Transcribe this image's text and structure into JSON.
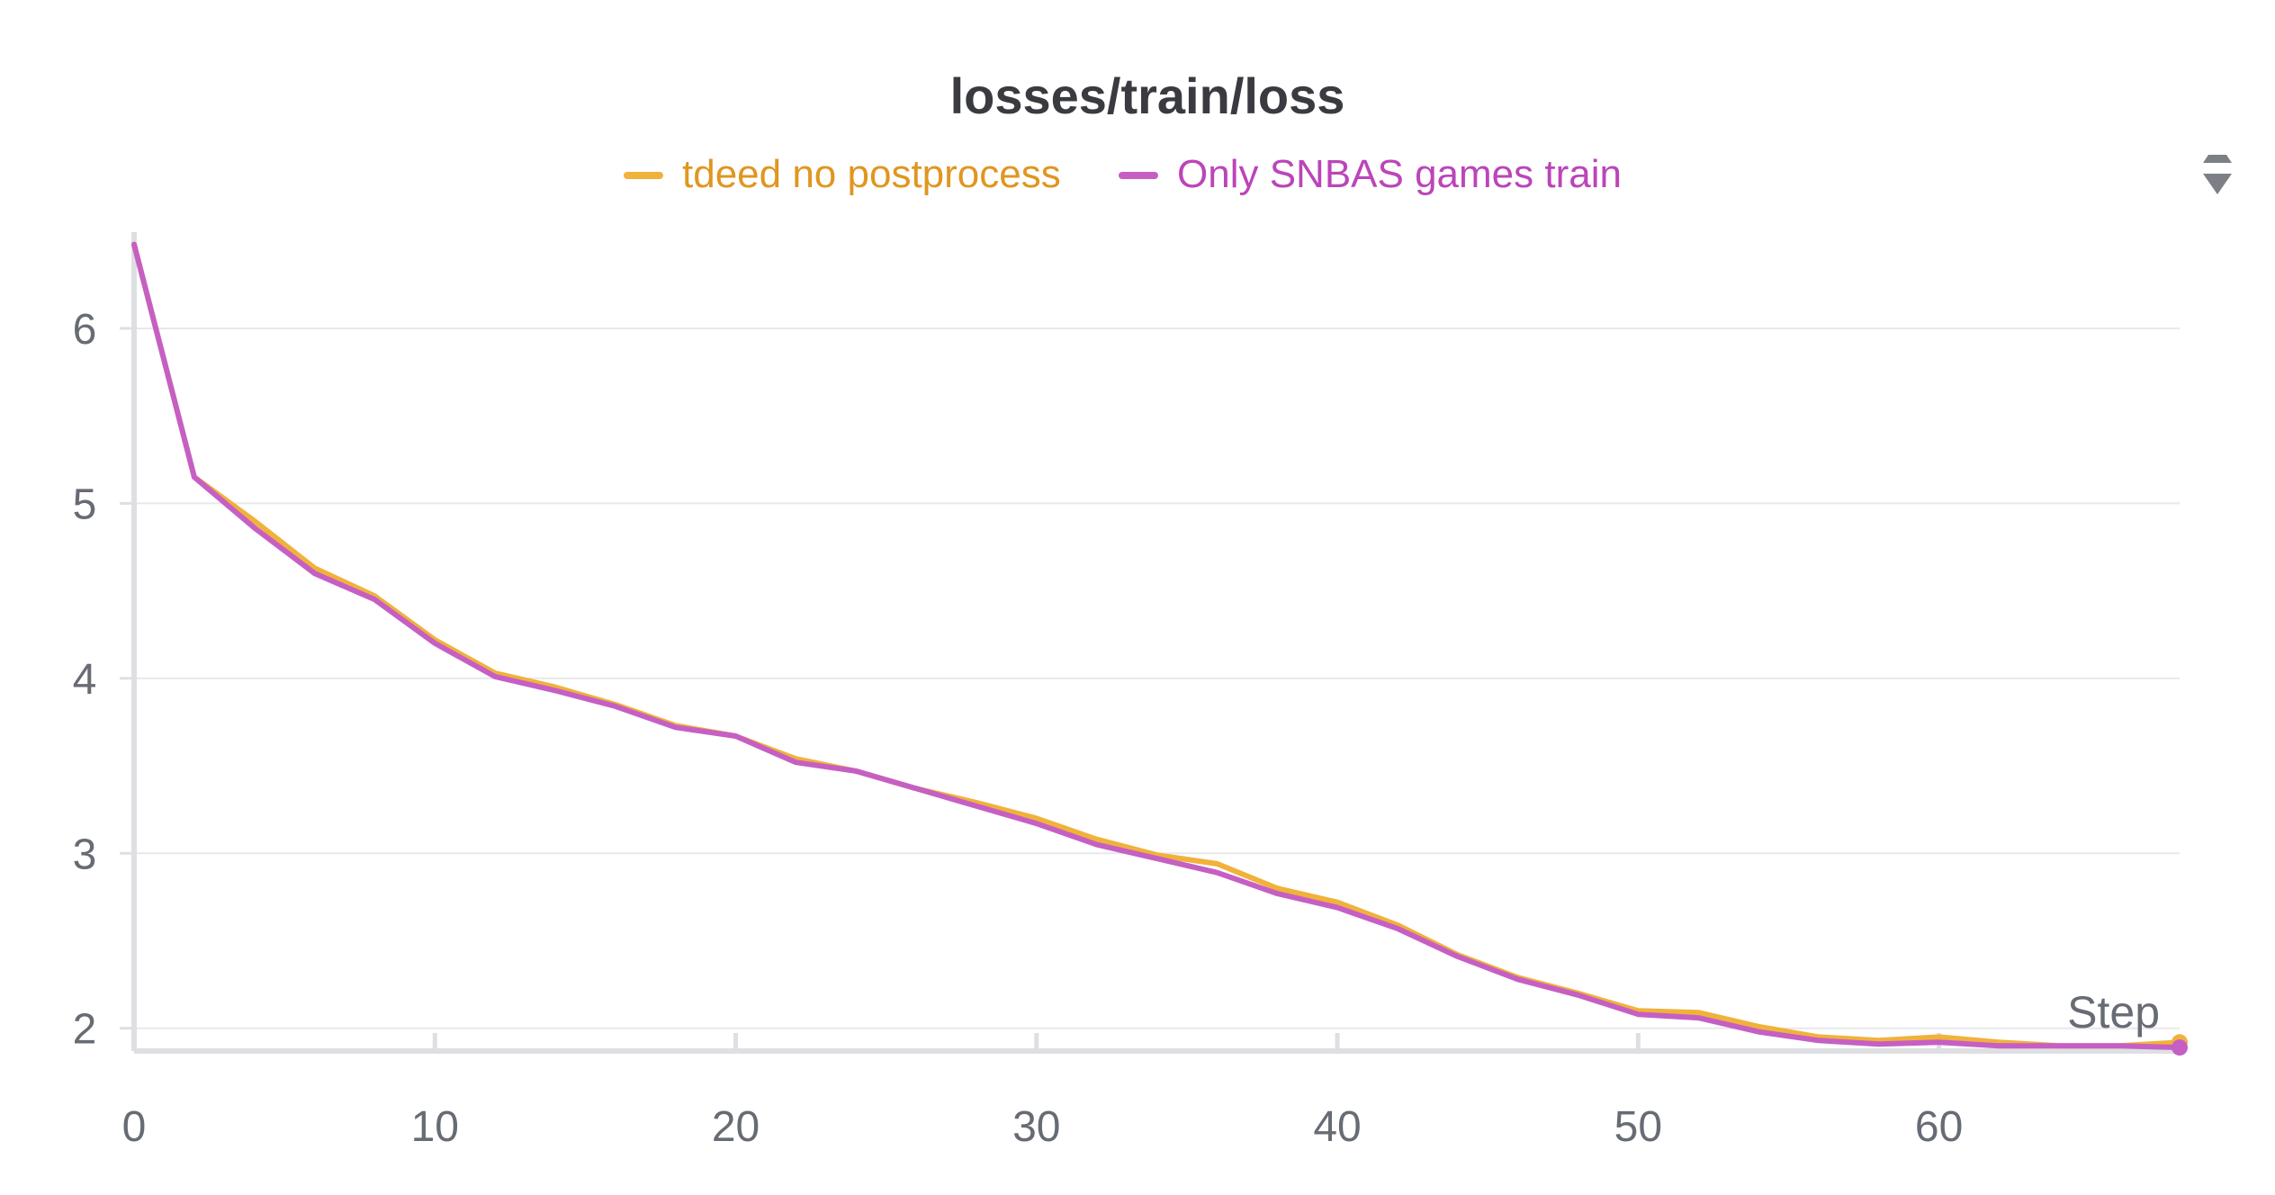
{
  "chart_data": {
    "type": "line",
    "title": "losses/train/loss",
    "xlabel": "Step",
    "ylabel": "",
    "xlim": [
      0,
      68
    ],
    "ylim": [
      1.87,
      6.55
    ],
    "xticks": [
      0,
      10,
      20,
      30,
      40,
      50,
      60
    ],
    "yticks": [
      2,
      3,
      4,
      5,
      6
    ],
    "grid": "horizontal",
    "legend_position": "top-center",
    "series": [
      {
        "name": "tdeed no postprocess",
        "color": "#f0b23a",
        "legend_text_color": "#e0961f",
        "x": [
          0,
          2,
          4,
          6,
          8,
          10,
          12,
          14,
          16,
          18,
          20,
          22,
          24,
          26,
          28,
          30,
          32,
          34,
          36,
          38,
          40,
          42,
          44,
          46,
          48,
          50,
          52,
          54,
          56,
          58,
          60,
          62,
          64,
          66,
          68
        ],
        "values": [
          6.48,
          5.15,
          4.9,
          4.63,
          4.47,
          4.22,
          4.03,
          3.95,
          3.85,
          3.73,
          3.67,
          3.54,
          3.47,
          3.37,
          3.29,
          3.2,
          3.08,
          2.99,
          2.94,
          2.8,
          2.72,
          2.59,
          2.42,
          2.29,
          2.2,
          2.1,
          2.09,
          2.01,
          1.95,
          1.93,
          1.95,
          1.92,
          1.9,
          1.9,
          1.92
        ]
      },
      {
        "name": "Only SNBAS games train",
        "color": "#c65fc4",
        "legend_text_color": "#bb45b9",
        "x": [
          0,
          2,
          4,
          6,
          8,
          10,
          12,
          14,
          16,
          18,
          20,
          22,
          24,
          26,
          28,
          30,
          32,
          34,
          36,
          38,
          40,
          42,
          44,
          46,
          48,
          50,
          52,
          54,
          56,
          58,
          60,
          62,
          64,
          66,
          68
        ],
        "values": [
          6.48,
          5.15,
          4.86,
          4.6,
          4.45,
          4.2,
          4.01,
          3.93,
          3.84,
          3.72,
          3.67,
          3.52,
          3.47,
          3.37,
          3.27,
          3.17,
          3.05,
          2.97,
          2.89,
          2.77,
          2.69,
          2.57,
          2.41,
          2.28,
          2.19,
          2.08,
          2.06,
          1.98,
          1.93,
          1.91,
          1.92,
          1.9,
          1.9,
          1.9,
          1.89
        ]
      }
    ]
  }
}
